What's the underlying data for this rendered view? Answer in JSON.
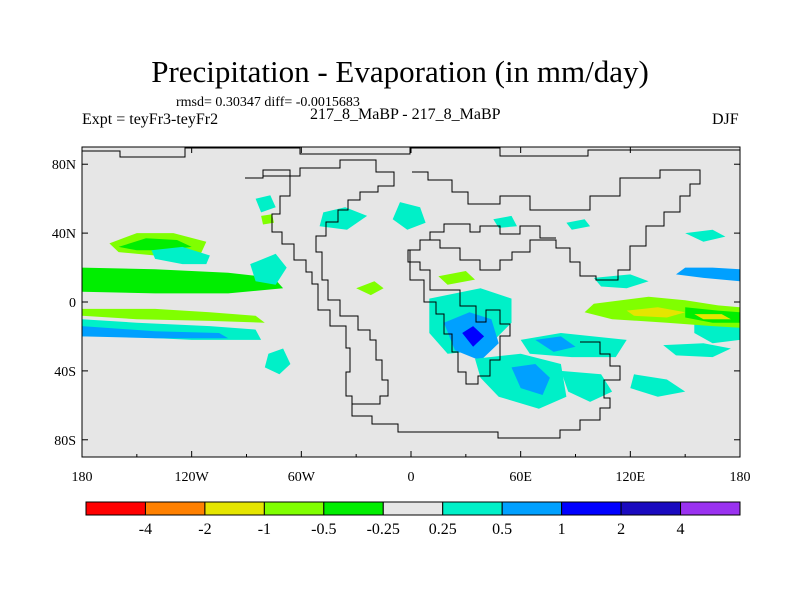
{
  "chart_data": {
    "type": "heatmap",
    "title": "Precipitation - Evaporation (in mm/day)",
    "stats": "rmsd= 0.30347 diff= -0.0015683",
    "left_string": "Expt = teyFr3-teyFr2",
    "center_string": "217_8_MaBP - 217_8_MaBP",
    "right_string": "DJF",
    "xlim": [
      -180,
      180
    ],
    "ylim": [
      -90,
      90
    ],
    "x_ticks": [
      {
        "value": -180,
        "label": "180"
      },
      {
        "value": -120,
        "label": "120W"
      },
      {
        "value": -60,
        "label": "60W"
      },
      {
        "value": 0,
        "label": "0"
      },
      {
        "value": 60,
        "label": "60E"
      },
      {
        "value": 120,
        "label": "120E"
      },
      {
        "value": 180,
        "label": "180"
      }
    ],
    "y_ticks": [
      {
        "value": 80,
        "label": "80N"
      },
      {
        "value": 40,
        "label": "40N"
      },
      {
        "value": 0,
        "label": "0"
      },
      {
        "value": -40,
        "label": "40S"
      },
      {
        "value": -80,
        "label": "80S"
      }
    ],
    "colorbar": {
      "levels": [
        "-4",
        "-2",
        "-1",
        "-0.5",
        "-0.25",
        "0.25",
        "0.5",
        "1",
        "2",
        "4"
      ],
      "colors": [
        "#ff0000",
        "#ff8000",
        "#e5e500",
        "#80ff00",
        "#00ee00",
        "#e6e6e6",
        "#00f0c8",
        "#00a0ff",
        "#0000ff",
        "#1a0abf",
        "#9a32f0"
      ]
    },
    "background_color": "#e6e6e6",
    "regions": [
      {
        "level": 4,
        "points": [
          [
            -180,
            20
          ],
          [
            -140,
            19
          ],
          [
            -100,
            17
          ],
          [
            -75,
            14
          ],
          [
            -70,
            8
          ],
          [
            -100,
            5
          ],
          [
            -140,
            5
          ],
          [
            -180,
            6
          ]
        ]
      },
      {
        "level": 3,
        "points": [
          [
            -180,
            -4
          ],
          [
            -140,
            -4
          ],
          [
            -110,
            -6
          ],
          [
            -85,
            -8
          ],
          [
            -80,
            -12
          ],
          [
            -110,
            -11
          ],
          [
            -150,
            -10
          ],
          [
            -180,
            -8
          ]
        ]
      },
      {
        "level": 6,
        "points": [
          [
            -180,
            -10
          ],
          [
            -150,
            -12
          ],
          [
            -110,
            -14
          ],
          [
            -85,
            -16
          ],
          [
            -82,
            -22
          ],
          [
            -120,
            -22
          ],
          [
            -160,
            -20
          ],
          [
            -180,
            -20
          ]
        ]
      },
      {
        "level": 7,
        "points": [
          [
            -180,
            -14
          ],
          [
            -140,
            -17
          ],
          [
            -105,
            -18
          ],
          [
            -100,
            -21
          ],
          [
            -140,
            -21
          ],
          [
            -180,
            -20
          ]
        ]
      },
      {
        "level": 3,
        "points": [
          [
            -165,
            34
          ],
          [
            -150,
            40
          ],
          [
            -130,
            40
          ],
          [
            -112,
            35
          ],
          [
            -115,
            28
          ],
          [
            -140,
            27
          ],
          [
            -160,
            29
          ]
        ]
      },
      {
        "level": 4,
        "points": [
          [
            -160,
            32
          ],
          [
            -145,
            37
          ],
          [
            -128,
            36
          ],
          [
            -120,
            32
          ],
          [
            -135,
            30
          ],
          [
            -150,
            30
          ]
        ]
      },
      {
        "level": 6,
        "points": [
          [
            -142,
            30
          ],
          [
            -125,
            32
          ],
          [
            -110,
            27
          ],
          [
            -112,
            22
          ],
          [
            -125,
            22
          ],
          [
            -140,
            25
          ]
        ]
      },
      {
        "level": 6,
        "points": [
          [
            -88,
            22
          ],
          [
            -74,
            28
          ],
          [
            -68,
            20
          ],
          [
            -74,
            10
          ],
          [
            -85,
            12
          ]
        ]
      },
      {
        "level": 6,
        "points": [
          [
            -78,
            -30
          ],
          [
            -70,
            -27
          ],
          [
            -66,
            -36
          ],
          [
            -72,
            -42
          ],
          [
            -80,
            -38
          ]
        ]
      },
      {
        "level": 6,
        "points": [
          [
            -85,
            60
          ],
          [
            -77,
            62
          ],
          [
            -74,
            55
          ],
          [
            -82,
            52
          ]
        ]
      },
      {
        "level": 3,
        "points": [
          [
            -82,
            50
          ],
          [
            -76,
            51
          ],
          [
            -75,
            46
          ],
          [
            -81,
            45
          ]
        ]
      },
      {
        "level": 6,
        "points": [
          [
            -48,
            52
          ],
          [
            -36,
            55
          ],
          [
            -24,
            50
          ],
          [
            -35,
            42
          ],
          [
            -50,
            44
          ]
        ]
      },
      {
        "level": 6,
        "points": [
          [
            -6,
            58
          ],
          [
            5,
            55
          ],
          [
            8,
            46
          ],
          [
            -2,
            42
          ],
          [
            -10,
            48
          ]
        ]
      },
      {
        "level": 3,
        "points": [
          [
            -30,
            8
          ],
          [
            -20,
            12
          ],
          [
            -15,
            8
          ],
          [
            -22,
            4
          ]
        ]
      },
      {
        "level": 3,
        "points": [
          [
            15,
            15
          ],
          [
            30,
            18
          ],
          [
            35,
            13
          ],
          [
            20,
            10
          ]
        ]
      },
      {
        "level": 6,
        "points": [
          [
            10,
            2
          ],
          [
            38,
            8
          ],
          [
            55,
            2
          ],
          [
            55,
            -12
          ],
          [
            40,
            -28
          ],
          [
            20,
            -30
          ],
          [
            10,
            -18
          ]
        ]
      },
      {
        "level": 7,
        "points": [
          [
            18,
            -12
          ],
          [
            32,
            -6
          ],
          [
            44,
            -10
          ],
          [
            48,
            -24
          ],
          [
            38,
            -34
          ],
          [
            24,
            -28
          ]
        ]
      },
      {
        "level": 8,
        "points": [
          [
            28,
            -18
          ],
          [
            34,
            -14
          ],
          [
            40,
            -20
          ],
          [
            34,
            -26
          ]
        ]
      },
      {
        "level": 6,
        "points": [
          [
            60,
            -22
          ],
          [
            82,
            -18
          ],
          [
            118,
            -22
          ],
          [
            112,
            -32
          ],
          [
            88,
            -32
          ],
          [
            65,
            -30
          ]
        ]
      },
      {
        "level": 7,
        "points": [
          [
            68,
            -22
          ],
          [
            82,
            -20
          ],
          [
            90,
            -26
          ],
          [
            78,
            -29
          ]
        ]
      },
      {
        "level": 6,
        "points": [
          [
            35,
            -33
          ],
          [
            60,
            -30
          ],
          [
            82,
            -36
          ],
          [
            85,
            -55
          ],
          [
            70,
            -62
          ],
          [
            48,
            -55
          ],
          [
            38,
            -44
          ]
        ]
      },
      {
        "level": 7,
        "points": [
          [
            55,
            -38
          ],
          [
            68,
            -36
          ],
          [
            76,
            -44
          ],
          [
            72,
            -54
          ],
          [
            60,
            -50
          ]
        ]
      },
      {
        "level": 6,
        "points": [
          [
            82,
            -40
          ],
          [
            104,
            -42
          ],
          [
            110,
            -52
          ],
          [
            98,
            -58
          ],
          [
            86,
            -52
          ]
        ]
      },
      {
        "level": 6,
        "points": [
          [
            122,
            -42
          ],
          [
            140,
            -45
          ],
          [
            150,
            -52
          ],
          [
            135,
            -55
          ],
          [
            120,
            -50
          ]
        ]
      },
      {
        "level": 6,
        "points": [
          [
            138,
            -25
          ],
          [
            160,
            -24
          ],
          [
            175,
            -27
          ],
          [
            165,
            -32
          ],
          [
            145,
            -31
          ]
        ]
      },
      {
        "level": 6,
        "points": [
          [
            155,
            -10
          ],
          [
            172,
            -8
          ],
          [
            180,
            -9
          ],
          [
            180,
            -22
          ],
          [
            165,
            -24
          ],
          [
            155,
            -18
          ]
        ]
      },
      {
        "level": 3,
        "points": [
          [
            100,
            -1
          ],
          [
            130,
            3
          ],
          [
            150,
            1
          ],
          [
            168,
            -2
          ],
          [
            180,
            -3
          ],
          [
            180,
            -15
          ],
          [
            165,
            -14
          ],
          [
            140,
            -12
          ],
          [
            110,
            -10
          ],
          [
            95,
            -6
          ]
        ]
      },
      {
        "level": 2,
        "points": [
          [
            118,
            -5
          ],
          [
            135,
            -3
          ],
          [
            150,
            -6
          ],
          [
            140,
            -9
          ],
          [
            122,
            -8
          ]
        ]
      },
      {
        "level": 4,
        "points": [
          [
            150,
            -3
          ],
          [
            168,
            -5
          ],
          [
            180,
            -6
          ],
          [
            180,
            -12
          ],
          [
            165,
            -12
          ],
          [
            150,
            -9
          ]
        ]
      },
      {
        "level": 2,
        "points": [
          [
            155,
            -7
          ],
          [
            170,
            -7
          ],
          [
            175,
            -10
          ],
          [
            160,
            -10
          ]
        ]
      },
      {
        "level": 7,
        "points": [
          [
            150,
            20
          ],
          [
            165,
            20
          ],
          [
            180,
            19
          ],
          [
            180,
            12
          ],
          [
            160,
            14
          ],
          [
            145,
            16
          ]
        ]
      },
      {
        "level": 6,
        "points": [
          [
            100,
            14
          ],
          [
            120,
            16
          ],
          [
            130,
            12
          ],
          [
            118,
            8
          ],
          [
            104,
            9
          ]
        ]
      },
      {
        "level": 6,
        "points": [
          [
            150,
            40
          ],
          [
            165,
            42
          ],
          [
            172,
            38
          ],
          [
            160,
            35
          ]
        ]
      },
      {
        "level": 6,
        "points": [
          [
            45,
            48
          ],
          [
            55,
            50
          ],
          [
            58,
            44
          ],
          [
            48,
            43
          ]
        ]
      },
      {
        "level": 6,
        "points": [
          [
            85,
            46
          ],
          [
            95,
            48
          ],
          [
            98,
            44
          ],
          [
            88,
            42
          ]
        ]
      }
    ]
  }
}
